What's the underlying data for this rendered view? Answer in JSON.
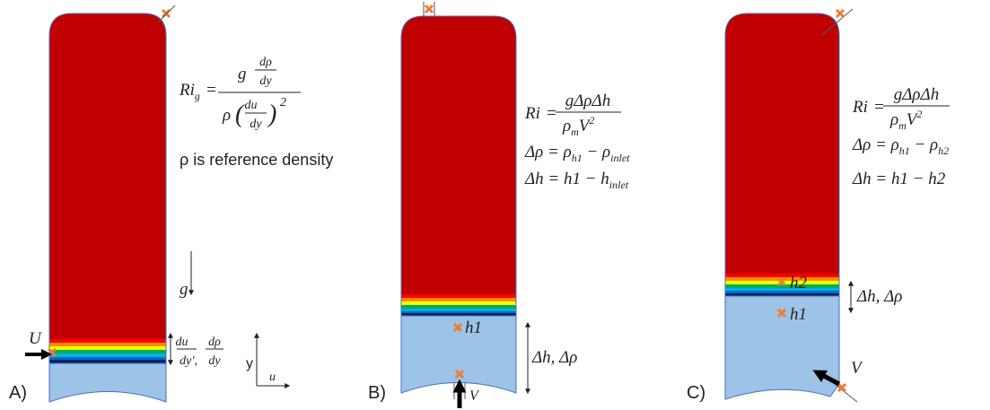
{
  "panel_a": {
    "label": "A)",
    "eq": {
      "lhs": "Ri",
      "lhs_sub": "g",
      "equals": "=",
      "num_g": "g",
      "num_top": "dρ",
      "num_bot": "dy",
      "den_rho": "ρ",
      "den_open": "(",
      "den_top": "du⃗",
      "den_bot": "dy",
      "den_close": ")",
      "den_exp": "2"
    },
    "note": "ρ is reference density",
    "gravity": "g",
    "velocity": "U⃗",
    "grad_u_top": "du⃗",
    "grad_u_bot": "dy′,",
    "grad_rho_top": "dρ",
    "grad_rho_bot": "dy",
    "axis_y": "y",
    "axis_u": "u⃗"
  },
  "panel_b": {
    "label": "B)",
    "eq": {
      "lhs": "Ri",
      "equals": "=",
      "num": "gΔρΔh",
      "den": "ρ",
      "den_sub": "m",
      "den_v": "V",
      "den_exp": "2"
    },
    "line1": {
      "lhs": "Δρ = ρ",
      "sub1": "h1",
      "mid": " − ρ",
      "sub2": "inlet"
    },
    "line2": {
      "lhs": "Δh = h1 − h",
      "sub": "inlet"
    },
    "probe": "h1",
    "delta": "Δh, Δρ",
    "velocity": "V"
  },
  "panel_c": {
    "label": "C)",
    "eq": {
      "lhs": "Ri",
      "equals": "=",
      "num": "gΔρΔh",
      "den": "ρ",
      "den_sub": "m",
      "den_v": "V",
      "den_exp": "2"
    },
    "line1": {
      "lhs": "Δρ = ρ",
      "sub1": "h1",
      "mid": " − ρ",
      "sub2": "h2"
    },
    "line2": {
      "lhs": "Δh = h1 − h2"
    },
    "probe_top": "h2",
    "probe_bottom": "h1",
    "delta": "Δh, Δρ",
    "velocity": "V"
  }
}
